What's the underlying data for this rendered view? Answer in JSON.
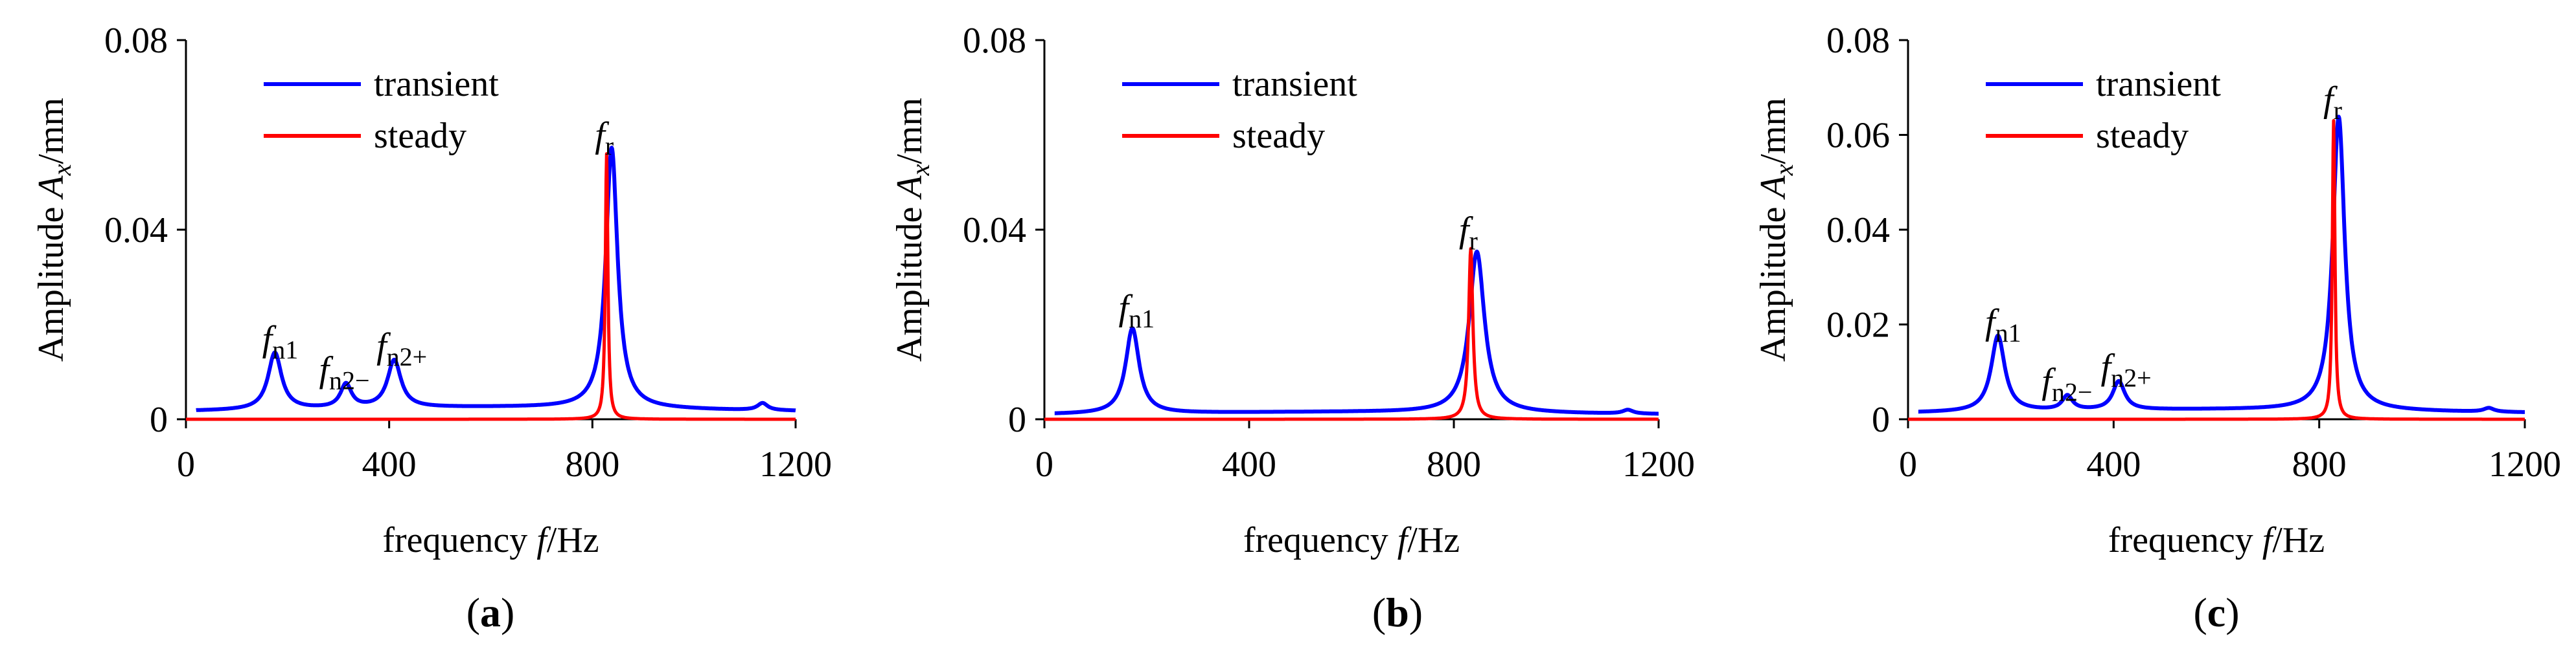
{
  "chart_data": [
    {
      "panel": "a",
      "type": "line",
      "caption_letter": "a",
      "xlabel": {
        "main": "frequency ",
        "italic": "f",
        "unit": "/Hz"
      },
      "ylabel": {
        "main": "Amplitude ",
        "italic": "A",
        "sub": "x",
        "unit": "/mm"
      },
      "xlim": [
        0,
        1200
      ],
      "ylim": [
        0,
        0.08
      ],
      "xticks": [
        0,
        400,
        800,
        1200
      ],
      "xtick_labels": [
        "0",
        "400",
        "800",
        "1200"
      ],
      "yticks": [
        0,
        0.04,
        0.08
      ],
      "ytick_labels": [
        "0",
        "0.04",
        "0.08"
      ],
      "legend": {
        "position": "top-left",
        "entries": [
          "transient",
          "steady"
        ]
      },
      "series": [
        {
          "name": "transient",
          "color": "#0000ff",
          "baseline": 0.0025,
          "peaks": [
            {
              "f": 175,
              "amp": 0.012,
              "w": 16
            },
            {
              "f": 315,
              "amp": 0.005,
              "w": 13
            },
            {
              "f": 410,
              "amp": 0.01,
              "w": 16
            },
            {
              "f": 838,
              "amp": 0.055,
              "w": 14
            },
            {
              "f": 1135,
              "amp": 0.0015,
              "w": 12
            }
          ]
        },
        {
          "name": "steady",
          "color": "#ff0000",
          "baseline": 0.0,
          "peaks": [
            {
              "f": 828,
              "amp": 0.056,
              "w": 3
            }
          ]
        }
      ],
      "annotations": [
        {
          "italic": "f",
          "sub": "n1",
          "f": 150,
          "y": 0.0145
        },
        {
          "italic": "f",
          "sub": "n2−",
          "f": 262,
          "y": 0.008
        },
        {
          "italic": "f",
          "sub": "n2+",
          "f": 375,
          "y": 0.013
        },
        {
          "italic": "f",
          "sub": "r",
          "f": 805,
          "y": 0.0575
        }
      ]
    },
    {
      "panel": "b",
      "type": "line",
      "caption_letter": "b",
      "xlabel": {
        "main": "frequency ",
        "italic": "f",
        "unit": "/Hz"
      },
      "ylabel": {
        "main": "Amplitude ",
        "italic": "A",
        "sub": "x",
        "unit": "/mm"
      },
      "xlim": [
        0,
        1200
      ],
      "ylim": [
        0,
        0.08
      ],
      "xticks": [
        0,
        400,
        800,
        1200
      ],
      "xtick_labels": [
        "0",
        "400",
        "800",
        "1200"
      ],
      "yticks": [
        0,
        0.04,
        0.08
      ],
      "ytick_labels": [
        "0",
        "0.04",
        "0.08"
      ],
      "legend": {
        "position": "top-left",
        "entries": [
          "transient",
          "steady"
        ]
      },
      "series": [
        {
          "name": "transient",
          "color": "#0000ff",
          "baseline": 0.0015,
          "peaks": [
            {
              "f": 172,
              "amp": 0.018,
              "w": 16
            },
            {
              "f": 845,
              "amp": 0.034,
              "w": 18
            },
            {
              "f": 1140,
              "amp": 0.0008,
              "w": 12
            }
          ]
        },
        {
          "name": "steady",
          "color": "#ff0000",
          "baseline": 0.0,
          "peaks": [
            {
              "f": 833,
              "amp": 0.036,
              "w": 5
            }
          ]
        }
      ],
      "annotations": [
        {
          "italic": "f",
          "sub": "n1",
          "f": 145,
          "y": 0.021
        },
        {
          "italic": "f",
          "sub": "r",
          "f": 810,
          "y": 0.0375
        }
      ]
    },
    {
      "panel": "c",
      "type": "line",
      "caption_letter": "c",
      "xlabel": {
        "main": "frequency ",
        "italic": "f",
        "unit": "/Hz"
      },
      "ylabel": {
        "main": "Amplitude ",
        "italic": "A",
        "sub": "x",
        "unit": "/mm"
      },
      "xlim": [
        0,
        1200
      ],
      "ylim": [
        0,
        0.08
      ],
      "xticks": [
        0,
        400,
        800,
        1200
      ],
      "xtick_labels": [
        "0",
        "400",
        "800",
        "1200"
      ],
      "yticks": [
        0,
        0.02,
        0.04,
        0.06,
        0.08
      ],
      "ytick_labels": [
        "0",
        "0.02",
        "0.04",
        "0.06",
        "0.08"
      ],
      "legend": {
        "position": "top-left",
        "entries": [
          "transient",
          "steady"
        ]
      },
      "series": [
        {
          "name": "transient",
          "color": "#0000ff",
          "baseline": 0.002,
          "peaks": [
            {
              "f": 175,
              "amp": 0.016,
              "w": 16
            },
            {
              "f": 310,
              "amp": 0.003,
              "w": 12
            },
            {
              "f": 410,
              "amp": 0.006,
              "w": 14
            },
            {
              "f": 838,
              "amp": 0.062,
              "w": 14
            },
            {
              "f": 1130,
              "amp": 0.0008,
              "w": 12
            }
          ]
        },
        {
          "name": "steady",
          "color": "#ff0000",
          "baseline": 0.0,
          "peaks": [
            {
              "f": 828,
              "amp": 0.063,
              "w": 3
            }
          ]
        }
      ],
      "annotations": [
        {
          "italic": "f",
          "sub": "n1",
          "f": 150,
          "y": 0.018
        },
        {
          "italic": "f",
          "sub": "n2−",
          "f": 260,
          "y": 0.0055
        },
        {
          "italic": "f",
          "sub": "n2+",
          "f": 375,
          "y": 0.0085
        },
        {
          "italic": "f",
          "sub": "r",
          "f": 808,
          "y": 0.065
        }
      ]
    }
  ]
}
